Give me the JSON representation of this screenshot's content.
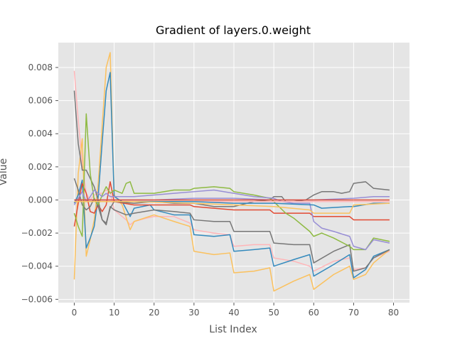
{
  "chart_data": {
    "type": "line",
    "title": "Gradient of layers.0.weight",
    "xlabel": "List Index",
    "ylabel": "Value",
    "xlim": [
      -4,
      84
    ],
    "ylim": [
      -0.0062,
      0.0095
    ],
    "xticks": [
      0,
      10,
      20,
      30,
      40,
      50,
      60,
      70,
      80
    ],
    "yticks": [
      0.008,
      0.006,
      0.004,
      0.002,
      0.0,
      -0.002,
      -0.004,
      -0.006
    ],
    "ytick_labels": [
      "0.008",
      "0.006",
      "0.004",
      "0.002",
      "0.000",
      "−0.002",
      "−0.004",
      "−0.006"
    ],
    "grid": true,
    "background": "#E5E5E5",
    "grid_color": "#FFFFFF",
    "series": [
      {
        "color": "#FFB5B8",
        "points": [
          [
            0,
            0.0078
          ],
          [
            1,
            0.0048
          ],
          [
            2,
            0.0022
          ],
          [
            3,
            0.0004
          ],
          [
            4,
            0.0
          ],
          [
            5,
            0.0003
          ],
          [
            6,
            0.0004
          ],
          [
            7,
            0.0004
          ],
          [
            8,
            0.0006
          ],
          [
            9,
            0.0005
          ],
          [
            10,
            -0.0006
          ],
          [
            13,
            -0.0012
          ],
          [
            14,
            -0.0015
          ],
          [
            15,
            -0.0013
          ],
          [
            18,
            -0.0011
          ],
          [
            20,
            -0.001
          ],
          [
            25,
            -0.001
          ],
          [
            29,
            -0.0014
          ],
          [
            30,
            -0.0018
          ],
          [
            35,
            -0.002
          ],
          [
            39,
            -0.0021
          ],
          [
            40,
            -0.0028
          ],
          [
            45,
            -0.0027
          ],
          [
            49,
            -0.0027
          ],
          [
            50,
            -0.0035
          ],
          [
            55,
            -0.0037
          ],
          [
            59,
            -0.004
          ],
          [
            60,
            -0.0043
          ],
          [
            65,
            -0.0037
          ],
          [
            69,
            -0.0035
          ],
          [
            70,
            -0.0042
          ],
          [
            73,
            -0.0041
          ],
          [
            75,
            -0.0035
          ],
          [
            79,
            -0.0031
          ]
        ]
      },
      {
        "color": "#FBC15E",
        "points": [
          [
            0,
            -0.0048
          ],
          [
            1,
            0.0016
          ],
          [
            2,
            0.0037
          ],
          [
            3,
            -0.0034
          ],
          [
            4,
            -0.0024
          ],
          [
            5,
            -0.0012
          ],
          [
            6,
            0.001
          ],
          [
            7,
            0.0045
          ],
          [
            8,
            0.008
          ],
          [
            9,
            0.0089
          ],
          [
            10,
            0.0003
          ],
          [
            12,
            -0.0003
          ],
          [
            14,
            -0.0018
          ],
          [
            15,
            -0.0013
          ],
          [
            20,
            -0.0009
          ],
          [
            25,
            -0.0013
          ],
          [
            29,
            -0.0016
          ],
          [
            30,
            -0.0031
          ],
          [
            35,
            -0.0033
          ],
          [
            39,
            -0.0032
          ],
          [
            40,
            -0.0044
          ],
          [
            45,
            -0.0043
          ],
          [
            49,
            -0.0041
          ],
          [
            50,
            -0.0055
          ],
          [
            55,
            -0.0049
          ],
          [
            59,
            -0.0045
          ],
          [
            60,
            -0.0054
          ],
          [
            65,
            -0.0045
          ],
          [
            69,
            -0.004
          ],
          [
            70,
            -0.0048
          ],
          [
            73,
            -0.0045
          ],
          [
            75,
            -0.0038
          ],
          [
            79,
            -0.003
          ]
        ]
      },
      {
        "color": "#348ABD",
        "points": [
          [
            0,
            -0.0002
          ],
          [
            1,
            0.0003
          ],
          [
            2,
            0.0012
          ],
          [
            3,
            -0.0029
          ],
          [
            4,
            -0.0023
          ],
          [
            5,
            -0.0016
          ],
          [
            6,
            0.0002
          ],
          [
            7,
            0.0035
          ],
          [
            8,
            0.0066
          ],
          [
            9,
            0.0077
          ],
          [
            10,
            0.0002
          ],
          [
            12,
            -0.0001
          ],
          [
            14,
            -0.001
          ],
          [
            15,
            -0.0005
          ],
          [
            19,
            -0.0003
          ],
          [
            20,
            -0.0006
          ],
          [
            25,
            -0.0009
          ],
          [
            29,
            -0.0009
          ],
          [
            30,
            -0.0021
          ],
          [
            35,
            -0.0022
          ],
          [
            39,
            -0.0021
          ],
          [
            40,
            -0.0031
          ],
          [
            45,
            -0.003
          ],
          [
            49,
            -0.0029
          ],
          [
            50,
            -0.004
          ],
          [
            55,
            -0.0036
          ],
          [
            59,
            -0.0033
          ],
          [
            60,
            -0.0046
          ],
          [
            65,
            -0.0039
          ],
          [
            69,
            -0.0033
          ],
          [
            70,
            -0.0047
          ],
          [
            73,
            -0.0042
          ],
          [
            75,
            -0.0034
          ],
          [
            79,
            -0.003
          ]
        ]
      },
      {
        "color": "#E24A33",
        "points": [
          [
            0,
            -0.0016
          ],
          [
            1,
            -0.0002
          ],
          [
            2,
            0.001
          ],
          [
            3,
            0.0004
          ],
          [
            4,
            -0.0007
          ],
          [
            5,
            -0.0008
          ],
          [
            6,
            -0.0003
          ],
          [
            7,
            -0.0007
          ],
          [
            8,
            -0.0003
          ],
          [
            9,
            0.0011
          ],
          [
            10,
            -0.0001
          ],
          [
            15,
            -0.0003
          ],
          [
            20,
            -0.0003
          ],
          [
            29,
            -0.0003
          ],
          [
            30,
            -0.0004
          ],
          [
            40,
            -0.0006
          ],
          [
            49,
            -0.0006
          ],
          [
            50,
            -0.0008
          ],
          [
            59,
            -0.0008
          ],
          [
            60,
            -0.001
          ],
          [
            69,
            -0.001
          ],
          [
            70,
            -0.0012
          ],
          [
            79,
            -0.0012
          ]
        ]
      },
      {
        "color": "#777777",
        "points": [
          [
            0,
            0.0013
          ],
          [
            1,
            0.0006
          ],
          [
            2,
            -0.0003
          ],
          [
            3,
            -0.0006
          ],
          [
            4,
            -0.0004
          ],
          [
            5,
            0.0001
          ],
          [
            6,
            -0.0004
          ],
          [
            7,
            -0.0012
          ],
          [
            8,
            -0.0015
          ],
          [
            9,
            -0.0004
          ],
          [
            10,
            -0.0006
          ],
          [
            13,
            -0.0009
          ],
          [
            15,
            -0.0008
          ],
          [
            20,
            -0.0006
          ],
          [
            25,
            -0.0007
          ],
          [
            29,
            -0.0008
          ],
          [
            30,
            -0.0012
          ],
          [
            35,
            -0.0013
          ],
          [
            39,
            -0.0013
          ],
          [
            40,
            -0.0019
          ],
          [
            45,
            -0.0019
          ],
          [
            49,
            -0.0019
          ],
          [
            50,
            -0.0026
          ],
          [
            55,
            -0.0027
          ],
          [
            59,
            -0.0027
          ],
          [
            60,
            -0.0038
          ],
          [
            65,
            -0.0031
          ],
          [
            69,
            -0.0027
          ],
          [
            70,
            -0.0043
          ],
          [
            73,
            -0.0041
          ],
          [
            75,
            -0.0035
          ],
          [
            79,
            -0.003
          ]
        ]
      },
      {
        "color": "#777777",
        "points": [
          [
            0,
            0.0066
          ],
          [
            1,
            0.0034
          ],
          [
            2,
            0.0018
          ],
          [
            3,
            0.0018
          ],
          [
            4,
            0.0013
          ],
          [
            5,
            0.0008
          ],
          [
            6,
            0.0
          ],
          [
            7,
            -0.0012
          ],
          [
            8,
            -0.0014
          ],
          [
            9,
            -0.0005
          ],
          [
            10,
            -0.0001
          ],
          [
            15,
            -0.0002
          ],
          [
            20,
            -0.0001
          ],
          [
            25,
            -0.0002
          ],
          [
            30,
            -0.0002
          ],
          [
            35,
            -0.0004
          ],
          [
            40,
            -0.0004
          ],
          [
            45,
            -0.0001
          ],
          [
            49,
            0.0
          ],
          [
            50,
            0.0002
          ],
          [
            52,
            0.0002
          ],
          [
            53,
            -0.0001
          ],
          [
            55,
            -0.0001
          ],
          [
            58,
            0.0
          ],
          [
            60,
            0.0003
          ],
          [
            62,
            0.0005
          ],
          [
            65,
            0.0005
          ],
          [
            67,
            0.0004
          ],
          [
            69,
            0.0005
          ],
          [
            70,
            0.001
          ],
          [
            73,
            0.0011
          ],
          [
            75,
            0.0007
          ],
          [
            79,
            0.0006
          ]
        ]
      },
      {
        "color": "#8EBA42",
        "points": [
          [
            0,
            -0.0008
          ],
          [
            1,
            -0.0016
          ],
          [
            2,
            -0.0022
          ],
          [
            3,
            0.0052
          ],
          [
            4,
            0.0016
          ],
          [
            5,
            0.0
          ],
          [
            6,
            -0.0003
          ],
          [
            7,
            0.0003
          ],
          [
            8,
            0.0008
          ],
          [
            9,
            0.0004
          ],
          [
            10,
            0.0006
          ],
          [
            12,
            0.0004
          ],
          [
            13,
            0.001
          ],
          [
            14,
            0.0011
          ],
          [
            15,
            0.0004
          ],
          [
            20,
            0.0004
          ],
          [
            25,
            0.0006
          ],
          [
            29,
            0.0006
          ],
          [
            30,
            0.0007
          ],
          [
            35,
            0.0008
          ],
          [
            39,
            0.0007
          ],
          [
            40,
            0.0005
          ],
          [
            45,
            0.0003
          ],
          [
            49,
            0.0001
          ],
          [
            50,
            -0.0001
          ],
          [
            53,
            -0.0008
          ],
          [
            55,
            -0.0011
          ],
          [
            59,
            -0.0019
          ],
          [
            60,
            -0.0022
          ],
          [
            62,
            -0.002
          ],
          [
            65,
            -0.0023
          ],
          [
            69,
            -0.0028
          ],
          [
            70,
            -0.003
          ],
          [
            73,
            -0.003
          ],
          [
            75,
            -0.0023
          ],
          [
            79,
            -0.0025
          ]
        ]
      },
      {
        "color": "#988ED5",
        "points": [
          [
            0,
            -0.0003
          ],
          [
            1,
            0.0001
          ],
          [
            2,
            0.0005
          ],
          [
            3,
            -0.0001
          ],
          [
            4,
            0.0002
          ],
          [
            5,
            0.0006
          ],
          [
            6,
            0.0004
          ],
          [
            7,
            0.0002
          ],
          [
            8,
            0.0004
          ],
          [
            9,
            0.0002
          ],
          [
            10,
            0.0002
          ],
          [
            15,
            0.0002
          ],
          [
            20,
            0.0003
          ],
          [
            25,
            0.0004
          ],
          [
            30,
            0.0005
          ],
          [
            35,
            0.0006
          ],
          [
            40,
            0.0004
          ],
          [
            45,
            0.0002
          ],
          [
            50,
            0.0001
          ],
          [
            52,
            -0.0001
          ],
          [
            55,
            -0.0002
          ],
          [
            59,
            -0.0002
          ],
          [
            60,
            -0.0013
          ],
          [
            62,
            -0.0017
          ],
          [
            65,
            -0.0019
          ],
          [
            69,
            -0.0022
          ],
          [
            70,
            -0.0028
          ],
          [
            73,
            -0.003
          ],
          [
            75,
            -0.0024
          ],
          [
            79,
            -0.0026
          ]
        ]
      },
      {
        "color": "#988ED5",
        "points": [
          [
            0,
            0.0
          ],
          [
            5,
            0.0
          ],
          [
            10,
            0.0
          ],
          [
            20,
            0.0
          ],
          [
            30,
            0.0001
          ],
          [
            40,
            0.0001
          ],
          [
            50,
            0.0
          ],
          [
            60,
            0.0
          ],
          [
            70,
            0.0001
          ],
          [
            75,
            0.0002
          ],
          [
            79,
            0.0002
          ]
        ]
      },
      {
        "color": "#E24A33",
        "points": [
          [
            0,
            0.0
          ],
          [
            20,
            0.0
          ],
          [
            40,
            0.0
          ],
          [
            60,
            0.0
          ],
          [
            79,
            0.0
          ]
        ]
      },
      {
        "color": "#FFB5B8",
        "points": [
          [
            0,
            -0.0001
          ],
          [
            10,
            -0.0001
          ],
          [
            30,
            -0.0001
          ],
          [
            50,
            -0.0001
          ],
          [
            79,
            -0.0001
          ]
        ]
      },
      {
        "color": "#348ABD",
        "points": [
          [
            0,
            -0.0001
          ],
          [
            10,
            -0.0001
          ],
          [
            20,
            -0.0001
          ],
          [
            30,
            -0.0001
          ],
          [
            40,
            -0.0002
          ],
          [
            50,
            -0.0002
          ],
          [
            60,
            -0.0003
          ],
          [
            62,
            -0.0005
          ],
          [
            69,
            -0.0004
          ],
          [
            70,
            -0.0004
          ],
          [
            75,
            -0.0002
          ],
          [
            79,
            -0.0002
          ]
        ]
      },
      {
        "color": "#FBC15E",
        "points": [
          [
            0,
            -0.0001
          ],
          [
            15,
            -0.0001
          ],
          [
            30,
            -0.0002
          ],
          [
            40,
            -0.0003
          ],
          [
            50,
            -0.0004
          ],
          [
            59,
            -0.0006
          ],
          [
            60,
            -0.0008
          ],
          [
            65,
            -0.0008
          ],
          [
            69,
            -0.0008
          ],
          [
            70,
            -0.0003
          ],
          [
            79,
            -0.0002
          ]
        ]
      }
    ]
  }
}
